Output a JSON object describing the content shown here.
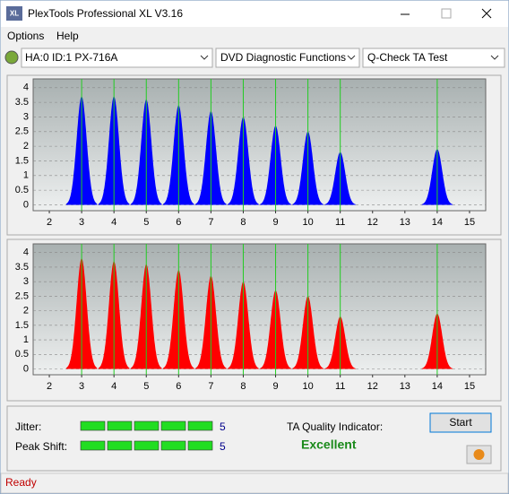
{
  "window": {
    "icon": "XL",
    "title": "PlexTools Professional XL V3.16"
  },
  "menu": [
    "Options",
    "Help"
  ],
  "toolbar": {
    "drive": "HA:0 ID:1  PX-716A",
    "function": "DVD Diagnostic Functions",
    "test": "Q-Check TA Test"
  },
  "chart_data": [
    {
      "type": "area",
      "color": "#0000ff",
      "x": [
        3,
        4,
        5,
        6,
        7,
        8,
        9,
        10,
        11,
        14
      ],
      "values": [
        3.7,
        3.7,
        3.6,
        3.4,
        3.2,
        3.0,
        2.7,
        2.5,
        1.8,
        1.9
      ],
      "xlim": [
        1.5,
        15.5
      ],
      "ylim": [
        -0.2,
        4.3
      ],
      "xticks": [
        2,
        3,
        4,
        5,
        6,
        7,
        8,
        9,
        10,
        11,
        12,
        13,
        14,
        15
      ],
      "yticks": [
        0,
        0.5,
        1,
        1.5,
        2,
        2.5,
        3,
        3.5,
        4
      ],
      "grid": true
    },
    {
      "type": "area",
      "color": "#ff0000",
      "x": [
        3,
        4,
        5,
        6,
        7,
        8,
        9,
        10,
        11,
        14
      ],
      "values": [
        3.8,
        3.7,
        3.6,
        3.4,
        3.2,
        3.0,
        2.7,
        2.5,
        1.8,
        1.9
      ],
      "xlim": [
        1.5,
        15.5
      ],
      "ylim": [
        -0.2,
        4.3
      ],
      "xticks": [
        2,
        3,
        4,
        5,
        6,
        7,
        8,
        9,
        10,
        11,
        12,
        13,
        14,
        15
      ],
      "yticks": [
        0,
        0.5,
        1,
        1.5,
        2,
        2.5,
        3,
        3.5,
        4
      ],
      "grid": true
    }
  ],
  "results": {
    "jitter_label": "Jitter:",
    "jitter": 5,
    "peak_shift_label": "Peak Shift:",
    "peak_shift": 5,
    "indicator_label": "TA Quality Indicator:",
    "indicator": "Excellent",
    "start": "Start"
  },
  "status": "Ready"
}
